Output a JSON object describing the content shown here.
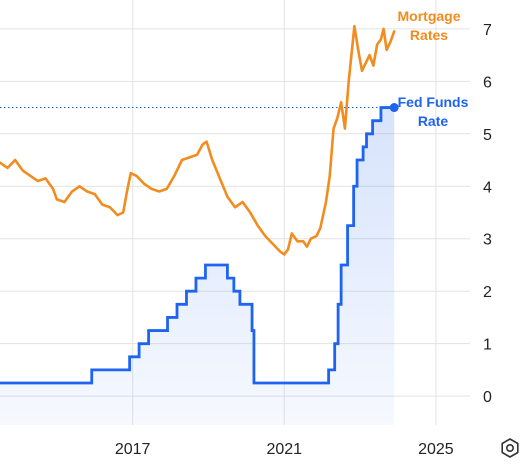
{
  "chart_data": {
    "type": "line",
    "title": "",
    "xlabel": "",
    "ylabel": "",
    "xlim": [
      2013.5,
      2025.9
    ],
    "ylim": [
      -0.55,
      7.55
    ],
    "x_ticks": [
      {
        "value": 2017,
        "label": "2017"
      },
      {
        "value": 2021,
        "label": "2021"
      },
      {
        "value": 2025,
        "label": "2025"
      }
    ],
    "y_ticks": [
      0,
      1,
      2,
      3,
      4,
      5,
      6,
      7
    ],
    "grid": {
      "horizontal": true,
      "vertical": true
    },
    "y_axis_position": "right",
    "settings_icon": "gear-icon",
    "series": [
      {
        "name": "Mortgage Rates",
        "color": "#F28C1E",
        "label_lines": [
          "Mortgage",
          "Rates"
        ],
        "points": [
          [
            2013.5,
            4.45
          ],
          [
            2013.7,
            4.35
          ],
          [
            2013.9,
            4.5
          ],
          [
            2014.1,
            4.3
          ],
          [
            2014.3,
            4.2
          ],
          [
            2014.5,
            4.1
          ],
          [
            2014.7,
            4.15
          ],
          [
            2014.9,
            3.95
          ],
          [
            2015.0,
            3.75
          ],
          [
            2015.2,
            3.7
          ],
          [
            2015.4,
            3.9
          ],
          [
            2015.6,
            4.0
          ],
          [
            2015.8,
            3.9
          ],
          [
            2016.0,
            3.85
          ],
          [
            2016.2,
            3.65
          ],
          [
            2016.4,
            3.6
          ],
          [
            2016.6,
            3.45
          ],
          [
            2016.75,
            3.5
          ],
          [
            2016.85,
            3.9
          ],
          [
            2016.95,
            4.25
          ],
          [
            2017.1,
            4.2
          ],
          [
            2017.3,
            4.05
          ],
          [
            2017.5,
            3.95
          ],
          [
            2017.7,
            3.9
          ],
          [
            2017.9,
            3.95
          ],
          [
            2018.1,
            4.2
          ],
          [
            2018.3,
            4.5
          ],
          [
            2018.5,
            4.55
          ],
          [
            2018.7,
            4.6
          ],
          [
            2018.85,
            4.8
          ],
          [
            2018.95,
            4.85
          ],
          [
            2019.1,
            4.5
          ],
          [
            2019.3,
            4.15
          ],
          [
            2019.5,
            3.8
          ],
          [
            2019.7,
            3.6
          ],
          [
            2019.9,
            3.7
          ],
          [
            2020.1,
            3.5
          ],
          [
            2020.3,
            3.25
          ],
          [
            2020.5,
            3.05
          ],
          [
            2020.7,
            2.9
          ],
          [
            2020.9,
            2.75
          ],
          [
            2021.0,
            2.7
          ],
          [
            2021.1,
            2.8
          ],
          [
            2021.2,
            3.1
          ],
          [
            2021.35,
            2.95
          ],
          [
            2021.5,
            2.95
          ],
          [
            2021.6,
            2.85
          ],
          [
            2021.7,
            3.0
          ],
          [
            2021.85,
            3.05
          ],
          [
            2021.95,
            3.2
          ],
          [
            2022.1,
            3.7
          ],
          [
            2022.2,
            4.2
          ],
          [
            2022.3,
            5.1
          ],
          [
            2022.4,
            5.3
          ],
          [
            2022.5,
            5.6
          ],
          [
            2022.6,
            5.1
          ],
          [
            2022.7,
            6.0
          ],
          [
            2022.8,
            6.7
          ],
          [
            2022.85,
            7.05
          ],
          [
            2022.95,
            6.6
          ],
          [
            2023.05,
            6.2
          ],
          [
            2023.15,
            6.35
          ],
          [
            2023.25,
            6.5
          ],
          [
            2023.35,
            6.3
          ],
          [
            2023.45,
            6.7
          ],
          [
            2023.55,
            6.8
          ],
          [
            2023.62,
            7.0
          ],
          [
            2023.7,
            6.6
          ],
          [
            2023.8,
            6.75
          ],
          [
            2023.9,
            6.95
          ]
        ]
      },
      {
        "name": "Fed Funds Rate",
        "color": "#1E64F0",
        "label_lines": [
          "Fed Funds",
          "Rate"
        ],
        "reference_line": 5.5,
        "points": [
          [
            2013.5,
            0.25
          ],
          [
            2015.92,
            0.25
          ],
          [
            2015.92,
            0.5
          ],
          [
            2016.92,
            0.5
          ],
          [
            2016.92,
            0.75
          ],
          [
            2017.17,
            0.75
          ],
          [
            2017.17,
            1.0
          ],
          [
            2017.42,
            1.0
          ],
          [
            2017.42,
            1.25
          ],
          [
            2017.92,
            1.25
          ],
          [
            2017.92,
            1.5
          ],
          [
            2018.17,
            1.5
          ],
          [
            2018.17,
            1.75
          ],
          [
            2018.42,
            1.75
          ],
          [
            2018.42,
            2.0
          ],
          [
            2018.67,
            2.0
          ],
          [
            2018.67,
            2.25
          ],
          [
            2018.92,
            2.25
          ],
          [
            2018.92,
            2.5
          ],
          [
            2019.5,
            2.5
          ],
          [
            2019.5,
            2.25
          ],
          [
            2019.67,
            2.25
          ],
          [
            2019.67,
            2.0
          ],
          [
            2019.83,
            2.0
          ],
          [
            2019.83,
            1.75
          ],
          [
            2020.15,
            1.75
          ],
          [
            2020.15,
            1.25
          ],
          [
            2020.2,
            1.25
          ],
          [
            2020.2,
            0.25
          ],
          [
            2022.17,
            0.25
          ],
          [
            2022.17,
            0.5
          ],
          [
            2022.33,
            0.5
          ],
          [
            2022.33,
            1.0
          ],
          [
            2022.42,
            1.0
          ],
          [
            2022.42,
            1.75
          ],
          [
            2022.5,
            1.75
          ],
          [
            2022.5,
            2.5
          ],
          [
            2022.67,
            2.5
          ],
          [
            2022.67,
            3.25
          ],
          [
            2022.83,
            3.25
          ],
          [
            2022.83,
            4.0
          ],
          [
            2022.92,
            4.0
          ],
          [
            2022.92,
            4.5
          ],
          [
            2023.08,
            4.5
          ],
          [
            2023.08,
            4.75
          ],
          [
            2023.17,
            4.75
          ],
          [
            2023.17,
            5.0
          ],
          [
            2023.33,
            5.0
          ],
          [
            2023.33,
            5.25
          ],
          [
            2023.55,
            5.25
          ],
          [
            2023.55,
            5.5
          ],
          [
            2023.9,
            5.5
          ]
        ]
      }
    ]
  }
}
